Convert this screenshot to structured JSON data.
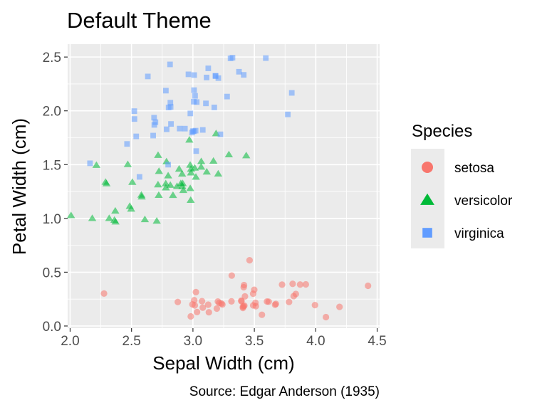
{
  "chart_data": {
    "type": "scatter",
    "title": "Default Theme",
    "xlabel": "Sepal Width (cm)",
    "ylabel": "Petal Width (cm)",
    "caption": "Source: Edgar Anderson (1935)",
    "xlim": [
      1.98,
      4.52
    ],
    "ylim": [
      -0.02,
      2.62
    ],
    "x_ticks": [
      2.0,
      2.5,
      3.0,
      3.5,
      4.0,
      4.5
    ],
    "x_tick_labels": [
      "2.0",
      "2.5",
      "3.0",
      "3.5",
      "4.0",
      "4.5"
    ],
    "y_ticks": [
      0.0,
      0.5,
      1.0,
      1.5,
      2.0,
      2.5
    ],
    "y_tick_labels": [
      "0.0",
      "0.5",
      "1.0",
      "1.5",
      "2.0",
      "2.5"
    ],
    "grid": true,
    "background": "#ebebeb",
    "legend": {
      "title": "Species",
      "placement": "right"
    },
    "series": [
      {
        "name": "setosa",
        "marker": "circle",
        "color": "#F8766D",
        "points": [
          [
            3.5,
            0.2
          ],
          [
            3.0,
            0.2
          ],
          [
            3.2,
            0.2
          ],
          [
            3.1,
            0.2
          ],
          [
            3.6,
            0.2
          ],
          [
            3.9,
            0.4
          ],
          [
            3.4,
            0.3
          ],
          [
            3.4,
            0.2
          ],
          [
            2.9,
            0.2
          ],
          [
            3.1,
            0.1
          ],
          [
            3.7,
            0.2
          ],
          [
            3.4,
            0.2
          ],
          [
            3.0,
            0.1
          ],
          [
            3.0,
            0.1
          ],
          [
            4.0,
            0.2
          ],
          [
            4.4,
            0.4
          ],
          [
            3.9,
            0.4
          ],
          [
            3.5,
            0.3
          ],
          [
            3.8,
            0.3
          ],
          [
            3.8,
            0.3
          ],
          [
            3.4,
            0.2
          ],
          [
            3.7,
            0.4
          ],
          [
            3.6,
            0.2
          ],
          [
            3.3,
            0.5
          ],
          [
            3.4,
            0.2
          ],
          [
            3.0,
            0.2
          ],
          [
            3.4,
            0.4
          ],
          [
            3.5,
            0.2
          ],
          [
            3.4,
            0.2
          ],
          [
            3.2,
            0.2
          ],
          [
            3.1,
            0.2
          ],
          [
            3.4,
            0.4
          ],
          [
            4.1,
            0.1
          ],
          [
            4.2,
            0.2
          ],
          [
            3.1,
            0.2
          ],
          [
            3.2,
            0.2
          ],
          [
            3.5,
            0.2
          ],
          [
            3.6,
            0.1
          ],
          [
            3.0,
            0.2
          ],
          [
            3.4,
            0.2
          ],
          [
            3.5,
            0.3
          ],
          [
            2.3,
            0.3
          ],
          [
            3.2,
            0.2
          ],
          [
            3.5,
            0.6
          ],
          [
            3.8,
            0.4
          ],
          [
            3.0,
            0.3
          ],
          [
            3.8,
            0.2
          ],
          [
            3.2,
            0.2
          ],
          [
            3.7,
            0.2
          ],
          [
            3.3,
            0.2
          ]
        ]
      },
      {
        "name": "versicolor",
        "marker": "triangle",
        "color": "#00BA38",
        "points": [
          [
            3.2,
            1.4
          ],
          [
            3.2,
            1.5
          ],
          [
            3.1,
            1.5
          ],
          [
            2.3,
            1.3
          ],
          [
            2.8,
            1.5
          ],
          [
            2.8,
            1.3
          ],
          [
            3.3,
            1.6
          ],
          [
            2.4,
            1.0
          ],
          [
            2.9,
            1.3
          ],
          [
            2.7,
            1.4
          ],
          [
            2.0,
            1.0
          ],
          [
            3.0,
            1.5
          ],
          [
            2.2,
            1.0
          ],
          [
            2.9,
            1.4
          ],
          [
            2.9,
            1.3
          ],
          [
            3.1,
            1.4
          ],
          [
            3.0,
            1.5
          ],
          [
            2.7,
            1.0
          ],
          [
            2.2,
            1.5
          ],
          [
            2.5,
            1.1
          ],
          [
            3.2,
            1.8
          ],
          [
            2.8,
            1.3
          ],
          [
            2.5,
            1.5
          ],
          [
            2.8,
            1.2
          ],
          [
            2.9,
            1.3
          ],
          [
            3.0,
            1.4
          ],
          [
            2.8,
            1.4
          ],
          [
            3.0,
            1.7
          ],
          [
            2.9,
            1.5
          ],
          [
            2.6,
            1.0
          ],
          [
            2.4,
            1.1
          ],
          [
            2.4,
            1.0
          ],
          [
            2.7,
            1.2
          ],
          [
            2.7,
            1.6
          ],
          [
            3.0,
            1.5
          ],
          [
            3.4,
            1.6
          ],
          [
            3.1,
            1.5
          ],
          [
            2.3,
            1.3
          ],
          [
            3.0,
            1.3
          ],
          [
            2.5,
            1.3
          ],
          [
            2.6,
            1.2
          ],
          [
            3.0,
            1.4
          ],
          [
            2.6,
            1.2
          ],
          [
            2.3,
            1.0
          ],
          [
            2.7,
            1.3
          ],
          [
            3.0,
            1.2
          ],
          [
            2.9,
            1.3
          ],
          [
            2.9,
            1.3
          ],
          [
            2.5,
            1.1
          ],
          [
            2.8,
            1.3
          ]
        ]
      },
      {
        "name": "virginica",
        "marker": "square",
        "color": "#619CFF",
        "points": [
          [
            3.3,
            2.5
          ],
          [
            2.7,
            1.9
          ],
          [
            3.0,
            2.1
          ],
          [
            2.9,
            1.8
          ],
          [
            3.0,
            2.2
          ],
          [
            3.0,
            2.1
          ],
          [
            2.5,
            1.7
          ],
          [
            2.9,
            1.8
          ],
          [
            2.5,
            1.8
          ],
          [
            3.6,
            2.5
          ],
          [
            3.2,
            2.0
          ],
          [
            2.7,
            1.9
          ],
          [
            3.0,
            2.1
          ],
          [
            2.5,
            2.0
          ],
          [
            2.8,
            2.4
          ],
          [
            3.2,
            2.3
          ],
          [
            3.0,
            1.8
          ],
          [
            3.8,
            2.2
          ],
          [
            2.6,
            2.3
          ],
          [
            2.2,
            1.5
          ],
          [
            3.2,
            2.3
          ],
          [
            2.8,
            2.0
          ],
          [
            2.8,
            2.0
          ],
          [
            2.7,
            1.8
          ],
          [
            3.3,
            2.1
          ],
          [
            3.2,
            1.8
          ],
          [
            2.8,
            1.8
          ],
          [
            3.0,
            1.8
          ],
          [
            2.8,
            2.1
          ],
          [
            3.0,
            1.6
          ],
          [
            2.8,
            1.9
          ],
          [
            3.8,
            2.0
          ],
          [
            2.8,
            2.2
          ],
          [
            2.8,
            1.5
          ],
          [
            2.6,
            1.4
          ],
          [
            3.0,
            2.3
          ],
          [
            3.4,
            2.4
          ],
          [
            3.1,
            1.8
          ],
          [
            3.0,
            1.8
          ],
          [
            3.1,
            2.1
          ],
          [
            3.1,
            2.4
          ],
          [
            3.1,
            2.3
          ],
          [
            2.7,
            1.9
          ],
          [
            3.2,
            2.3
          ],
          [
            3.3,
            2.5
          ],
          [
            3.0,
            2.3
          ],
          [
            2.5,
            1.9
          ],
          [
            3.0,
            2.0
          ],
          [
            3.4,
            2.3
          ],
          [
            3.0,
            1.8
          ]
        ]
      }
    ]
  }
}
